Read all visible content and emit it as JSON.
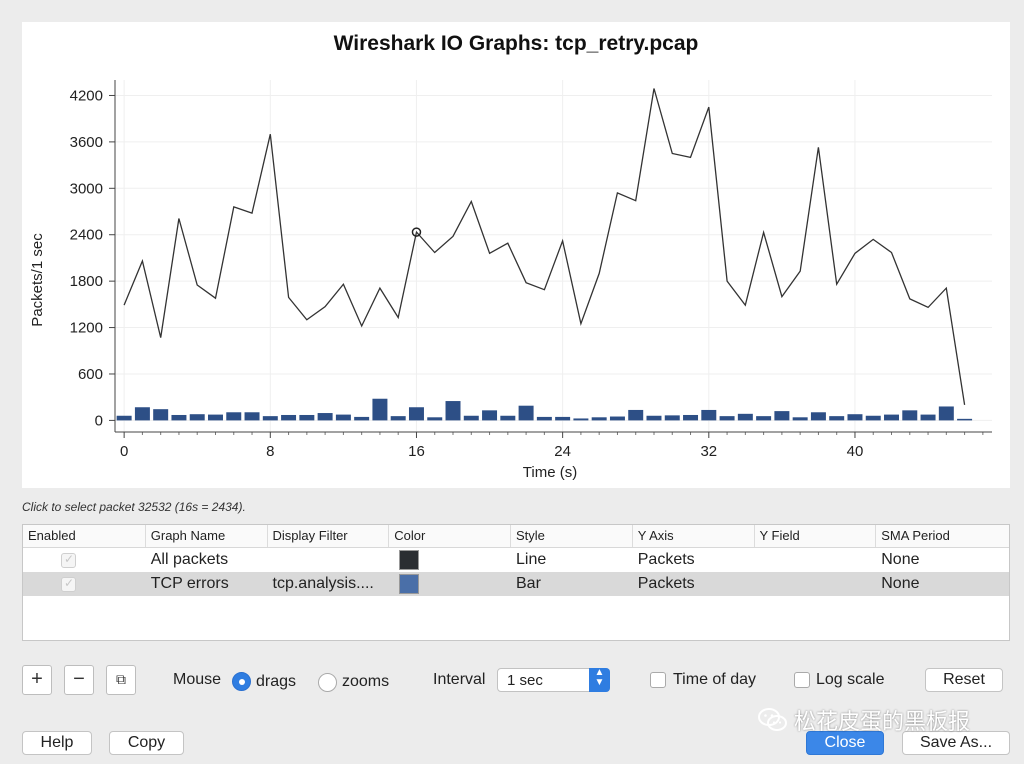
{
  "chart_data": {
    "type": "line",
    "title": "Wireshark IO Graphs: tcp_retry.pcap",
    "xlabel": "Time (s)",
    "ylabel": "Packets/1 sec",
    "xlim": [
      -0.5,
      47.5
    ],
    "ylim": [
      -150,
      4400
    ],
    "xticks": [
      "0",
      "8",
      "16",
      "24",
      "32",
      "40"
    ],
    "yticks": [
      "0",
      "600",
      "1200",
      "1800",
      "2400",
      "3000",
      "3600",
      "4200"
    ],
    "grid": true,
    "series": [
      {
        "name": "All packets",
        "type": "line",
        "color": "#333333",
        "x": [
          0,
          1,
          2,
          3,
          4,
          5,
          6,
          7,
          8,
          9,
          10,
          11,
          12,
          13,
          14,
          15,
          16,
          17,
          18,
          19,
          20,
          21,
          22,
          23,
          24,
          25,
          26,
          27,
          28,
          29,
          30,
          31,
          32,
          33,
          34,
          35,
          36,
          37,
          38,
          39,
          40,
          41,
          42,
          43,
          44,
          45,
          46
        ],
        "values": [
          1490,
          2060,
          1070,
          2610,
          1750,
          1580,
          2760,
          2680,
          3700,
          1590,
          1300,
          1470,
          1760,
          1220,
          1710,
          1330,
          2434,
          2170,
          2380,
          2830,
          2160,
          2290,
          1780,
          1690,
          2320,
          1250,
          1900,
          2940,
          2840,
          4290,
          3450,
          3400,
          4050,
          1800,
          1490,
          2430,
          1600,
          1930,
          3530,
          1760,
          2160,
          2340,
          2170,
          1570,
          1460,
          1710,
          200
        ]
      },
      {
        "name": "TCP errors",
        "type": "bar",
        "color": "#2d4f86",
        "x": [
          0,
          1,
          2,
          3,
          4,
          5,
          6,
          7,
          8,
          9,
          10,
          11,
          12,
          13,
          14,
          15,
          16,
          17,
          18,
          19,
          20,
          21,
          22,
          23,
          24,
          25,
          26,
          27,
          28,
          29,
          30,
          31,
          32,
          33,
          34,
          35,
          36,
          37,
          38,
          39,
          40,
          41,
          42,
          43,
          44,
          45,
          46
        ],
        "values": [
          60,
          170,
          145,
          70,
          80,
          75,
          105,
          105,
          55,
          70,
          70,
          95,
          75,
          45,
          280,
          55,
          170,
          40,
          250,
          60,
          130,
          60,
          190,
          45,
          45,
          25,
          40,
          50,
          135,
          60,
          65,
          70,
          135,
          55,
          85,
          55,
          120,
          40,
          105,
          55,
          80,
          60,
          75,
          130,
          75,
          180,
          20
        ]
      }
    ],
    "selected_point": {
      "x": 16,
      "y": 2434
    }
  },
  "status": {
    "message": "Click to select packet 32532 (16s = 2434)."
  },
  "table": {
    "headers": [
      "Enabled",
      "Graph Name",
      "Display Filter",
      "Color",
      "Style",
      "Y Axis",
      "Y Field",
      "SMA Period"
    ],
    "rows": [
      {
        "enabled": true,
        "name": "All packets",
        "filter": "",
        "color": "#2b2e32",
        "style": "Line",
        "y_axis": "Packets",
        "y_field": "",
        "sma": "None",
        "selected": false
      },
      {
        "enabled": true,
        "name": "TCP errors",
        "filter": "tcp.analysis....",
        "color": "#4a6fa8",
        "style": "Bar",
        "y_axis": "Packets",
        "y_field": "",
        "sma": "None",
        "selected": true
      }
    ]
  },
  "controls": {
    "add_glyph": "+",
    "remove_glyph": "−",
    "copy_glyph": "⧉",
    "mouse_label": "Mouse",
    "mouse_drags_label": "drags",
    "mouse_zooms_label": "zooms",
    "mouse_mode": "drags",
    "interval_label": "Interval",
    "interval_value": "1 sec",
    "time_of_day_label": "Time of day",
    "time_of_day_checked": false,
    "log_scale_label": "Log scale",
    "log_scale_checked": false,
    "reset_label": "Reset"
  },
  "buttons": {
    "help": "Help",
    "copy": "Copy",
    "close": "Close",
    "save_as": "Save As..."
  },
  "watermark": {
    "text": "松花皮蛋的黑板报"
  }
}
